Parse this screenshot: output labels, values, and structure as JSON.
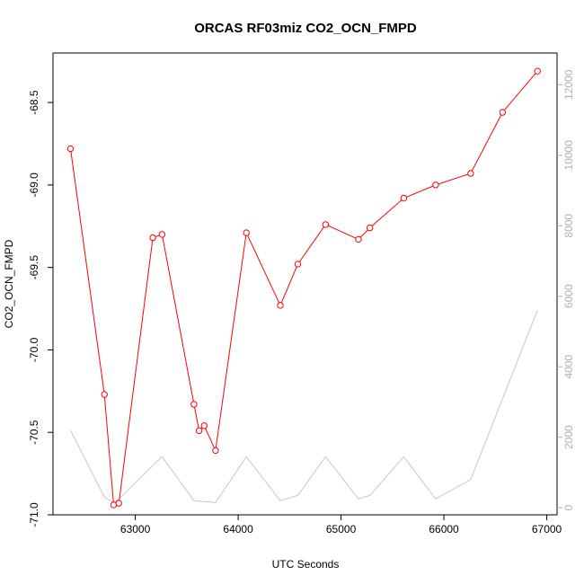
{
  "chart_data": {
    "type": "line",
    "title": "ORCAS RF03miz CO2_OCN_FMPD",
    "xlabel": "UTC Seconds",
    "ylabel": "CO2_OCN_FMPD",
    "xlim": [
      62200,
      67100
    ],
    "ylim": [
      -71.0,
      -68.2
    ],
    "y2lim": [
      -200,
      12900
    ],
    "x_ticks": [
      63000,
      64000,
      65000,
      66000,
      67000
    ],
    "y_ticks": [
      -68.5,
      -69.0,
      -69.5,
      -70.0,
      -70.5,
      -71.0
    ],
    "y2_ticks": [
      0,
      2000,
      4000,
      6000,
      8000,
      10000,
      12000
    ],
    "grid": false,
    "series": [
      {
        "axis": "left",
        "color": "#ff0000",
        "markers": "open-circle",
        "x": [
          62370,
          62700,
          62790,
          62840,
          63170,
          63260,
          63570,
          63620,
          63670,
          63780,
          64080,
          64410,
          64580,
          64850,
          65170,
          65280,
          65610,
          65920,
          66260,
          66570,
          66910
        ],
        "y": [
          -68.78,
          -70.27,
          -70.94,
          -70.93,
          -69.32,
          -69.3,
          -70.33,
          -70.49,
          -70.46,
          -70.61,
          -69.29,
          -69.73,
          -69.48,
          -69.24,
          -69.33,
          -69.26,
          -69.08,
          -69.0,
          -68.93,
          -68.56,
          -68.31
        ]
      },
      {
        "axis": "right",
        "color": "#c8c8c8",
        "markers": "none",
        "x": [
          62370,
          62700,
          62790,
          62840,
          63170,
          63260,
          63570,
          63780,
          64080,
          64410,
          64580,
          64850,
          65170,
          65280,
          65610,
          65920,
          66260,
          66910
        ],
        "y": [
          2200,
          300,
          150,
          250,
          1200,
          1450,
          200,
          150,
          1450,
          200,
          350,
          1450,
          250,
          350,
          1450,
          250,
          800,
          5600
        ]
      }
    ]
  }
}
